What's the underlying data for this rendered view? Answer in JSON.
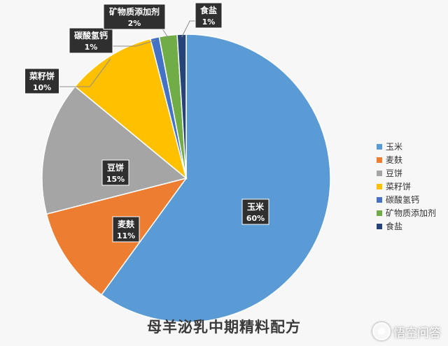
{
  "chart_data": {
    "type": "pie",
    "title": "母羊泌乳中期精料配方",
    "start_angle_deg": 0,
    "direction": "clockwise",
    "legend_position": "right",
    "slices": [
      {
        "name": "玉米",
        "value": 60,
        "label": "60%",
        "color": "#5b9bd5"
      },
      {
        "name": "麦麸",
        "value": 11,
        "label": "11%",
        "color": "#ed7d31"
      },
      {
        "name": "豆饼",
        "value": 15,
        "label": "15%",
        "color": "#a5a5a5"
      },
      {
        "name": "菜籽饼",
        "value": 10,
        "label": "10%",
        "color": "#ffc000"
      },
      {
        "name": "碳酸氢钙",
        "value": 1,
        "label": "1%",
        "color": "#4472c4"
      },
      {
        "name": "矿物质添加剂",
        "value": 2,
        "label": "2%",
        "color": "#70ad47"
      },
      {
        "name": "食盐",
        "value": 1,
        "label": "1%",
        "color": "#264478"
      }
    ]
  },
  "watermark": {
    "text": "悟空问答"
  }
}
